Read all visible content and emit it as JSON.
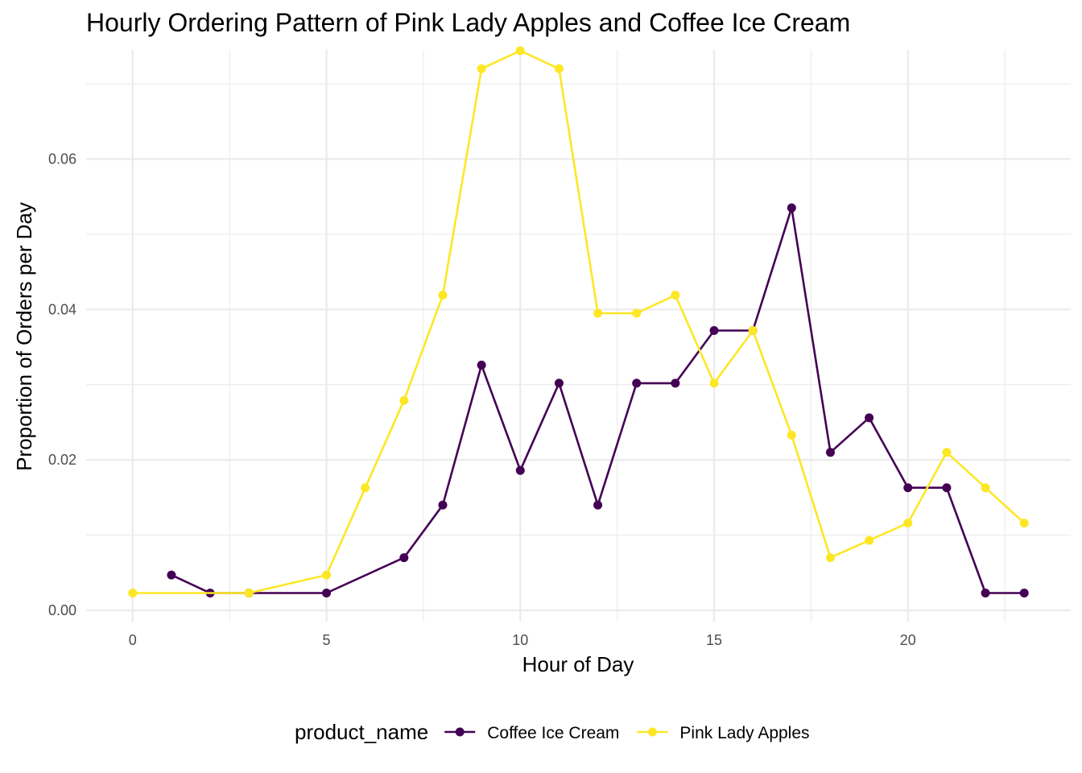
{
  "chart_data": {
    "type": "line",
    "title": "Hourly Ordering Pattern of Pink Lady Apples and Coffee Ice Cream",
    "xlabel": "Hour of Day",
    "ylabel": "Proportion of Orders per Day",
    "xlim": [
      -1.2,
      24.2
    ],
    "ylim": [
      -0.0015,
      0.0745
    ],
    "x_ticks": [
      0,
      5,
      10,
      15,
      20
    ],
    "x_tick_labels": [
      "0",
      "5",
      "10",
      "15",
      "20"
    ],
    "x_minor_ticks": [
      2.5,
      7.5,
      12.5,
      17.5,
      22.5
    ],
    "y_ticks": [
      0,
      0.02,
      0.04,
      0.06
    ],
    "y_tick_labels": [
      "0.00",
      "0.02",
      "0.04",
      "0.06"
    ],
    "y_minor_ticks": [
      0.01,
      0.03,
      0.05,
      0.07
    ],
    "grid": true,
    "legend": {
      "title": "product_name",
      "position": "bottom"
    },
    "series": [
      {
        "name": "Coffee Ice Cream",
        "color": "#440154",
        "x": [
          1,
          2,
          3,
          5,
          7,
          8,
          9,
          10,
          11,
          12,
          13,
          14,
          15,
          16,
          17,
          18,
          19,
          20,
          21,
          22,
          23
        ],
        "y": [
          0.0047,
          0.0023,
          0.0023,
          0.0023,
          0.007,
          0.014,
          0.0326,
          0.0186,
          0.0302,
          0.014,
          0.0302,
          0.0302,
          0.0372,
          0.0372,
          0.0535,
          0.021,
          0.0256,
          0.0163,
          0.0163,
          0.0023,
          0.0023
        ]
      },
      {
        "name": "Pink Lady Apples",
        "color": "#FDE725",
        "x": [
          0,
          3,
          5,
          6,
          7,
          8,
          9,
          10,
          11,
          12,
          13,
          14,
          15,
          16,
          17,
          18,
          19,
          20,
          21,
          22,
          23
        ],
        "y": [
          0.0023,
          0.0023,
          0.0047,
          0.0163,
          0.0279,
          0.0419,
          0.072,
          0.0744,
          0.072,
          0.0395,
          0.0395,
          0.0419,
          0.0302,
          0.0372,
          0.0233,
          0.007,
          0.0093,
          0.0116,
          0.021,
          0.0163,
          0.0116
        ]
      }
    ]
  }
}
